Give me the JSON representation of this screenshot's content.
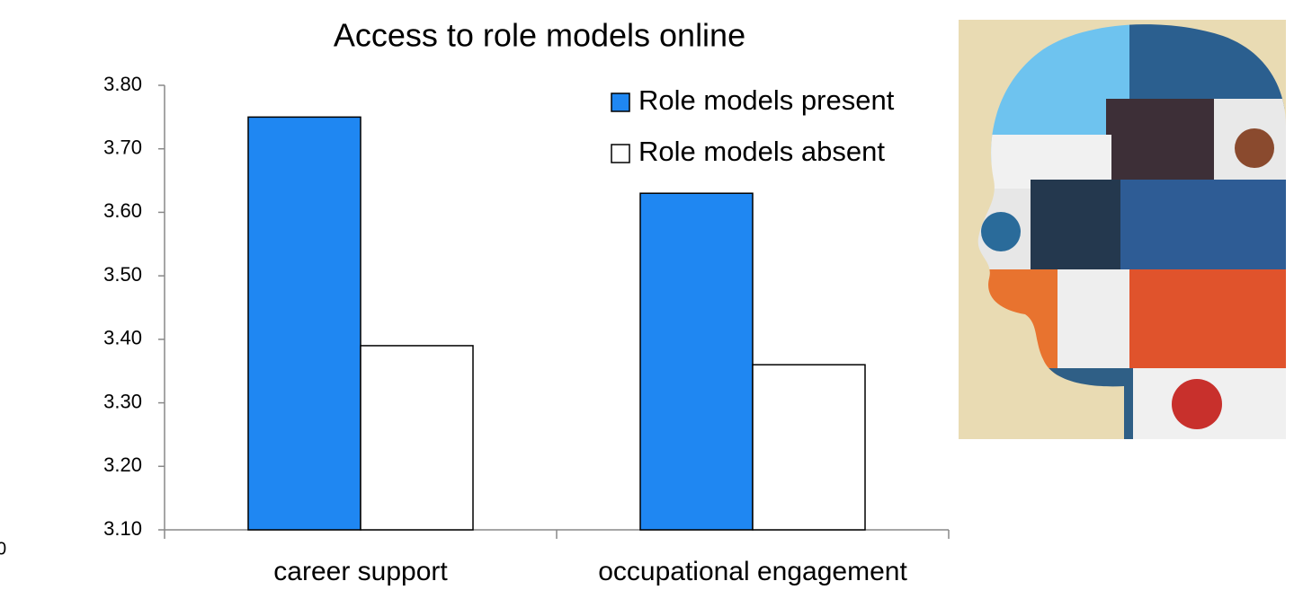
{
  "chart_data": {
    "type": "bar",
    "title": "Access to role models online",
    "categories": [
      "career support",
      "occupational engagement"
    ],
    "series": [
      {
        "name": "Role models present",
        "color": "#1f87f2",
        "values": [
          3.75,
          3.63
        ]
      },
      {
        "name": "Role models absent",
        "color": "#ffffff",
        "values": [
          3.39,
          3.36
        ]
      }
    ],
    "ylim": [
      3.1,
      3.8
    ],
    "yticks": [
      {
        "value": 3.1,
        "label": "3.10"
      },
      {
        "value": 3.2,
        "label": "3.20"
      },
      {
        "value": 3.3,
        "label": "3.30"
      },
      {
        "value": 3.4,
        "label": "3.40"
      },
      {
        "value": 3.5,
        "label": "3.50"
      },
      {
        "value": 3.6,
        "label": "3.60"
      },
      {
        "value": 3.7,
        "label": "3.70"
      },
      {
        "value": 3.8,
        "label": "3.80"
      }
    ],
    "grid": false,
    "legend": "top-right"
  },
  "edge_fragment": "0"
}
